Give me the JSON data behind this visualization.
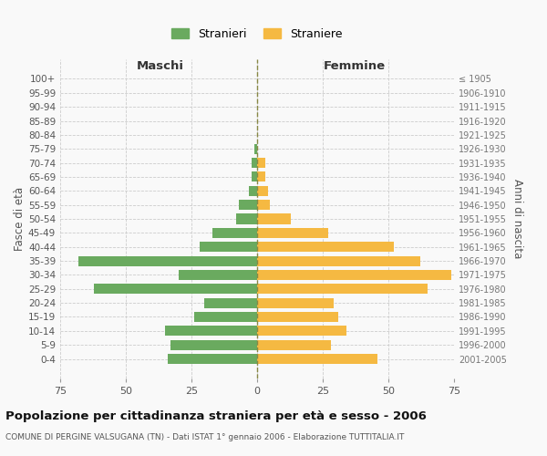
{
  "age_groups_bottom_to_top": [
    "0-4",
    "5-9",
    "10-14",
    "15-19",
    "20-24",
    "25-29",
    "30-34",
    "35-39",
    "40-44",
    "45-49",
    "50-54",
    "55-59",
    "60-64",
    "65-69",
    "70-74",
    "75-79",
    "80-84",
    "85-89",
    "90-94",
    "95-99",
    "100+"
  ],
  "birth_years_bottom_to_top": [
    "2001-2005",
    "1996-2000",
    "1991-1995",
    "1986-1990",
    "1981-1985",
    "1976-1980",
    "1971-1975",
    "1966-1970",
    "1961-1965",
    "1956-1960",
    "1951-1955",
    "1946-1950",
    "1941-1945",
    "1936-1940",
    "1931-1935",
    "1926-1930",
    "1921-1925",
    "1916-1920",
    "1911-1915",
    "1906-1910",
    "≤ 1905"
  ],
  "maschi_bottom_to_top": [
    34,
    33,
    35,
    24,
    20,
    62,
    30,
    68,
    22,
    17,
    8,
    7,
    3,
    2,
    2,
    1,
    0,
    0,
    0,
    0,
    0
  ],
  "femmine_bottom_to_top": [
    46,
    28,
    34,
    31,
    29,
    65,
    74,
    62,
    52,
    27,
    13,
    5,
    4,
    3,
    3,
    0,
    0,
    0,
    0,
    0,
    0
  ],
  "male_color": "#6aaa5f",
  "female_color": "#f5b942",
  "title": "Popolazione per cittadinanza straniera per età e sesso - 2006",
  "subtitle": "COMUNE DI PERGINE VALSUGANA (TN) - Dati ISTAT 1° gennaio 2006 - Elaborazione TUTTITALIA.IT",
  "ylabel_left": "Fasce di età",
  "ylabel_right": "Anni di nascita",
  "xlim": 75,
  "legend_maschi": "Stranieri",
  "legend_femmine": "Straniere",
  "maschi_header": "Maschi",
  "femmine_header": "Femmine",
  "bg_color": "#f9f9f9",
  "grid_color": "#cccccc",
  "bar_height": 0.72
}
